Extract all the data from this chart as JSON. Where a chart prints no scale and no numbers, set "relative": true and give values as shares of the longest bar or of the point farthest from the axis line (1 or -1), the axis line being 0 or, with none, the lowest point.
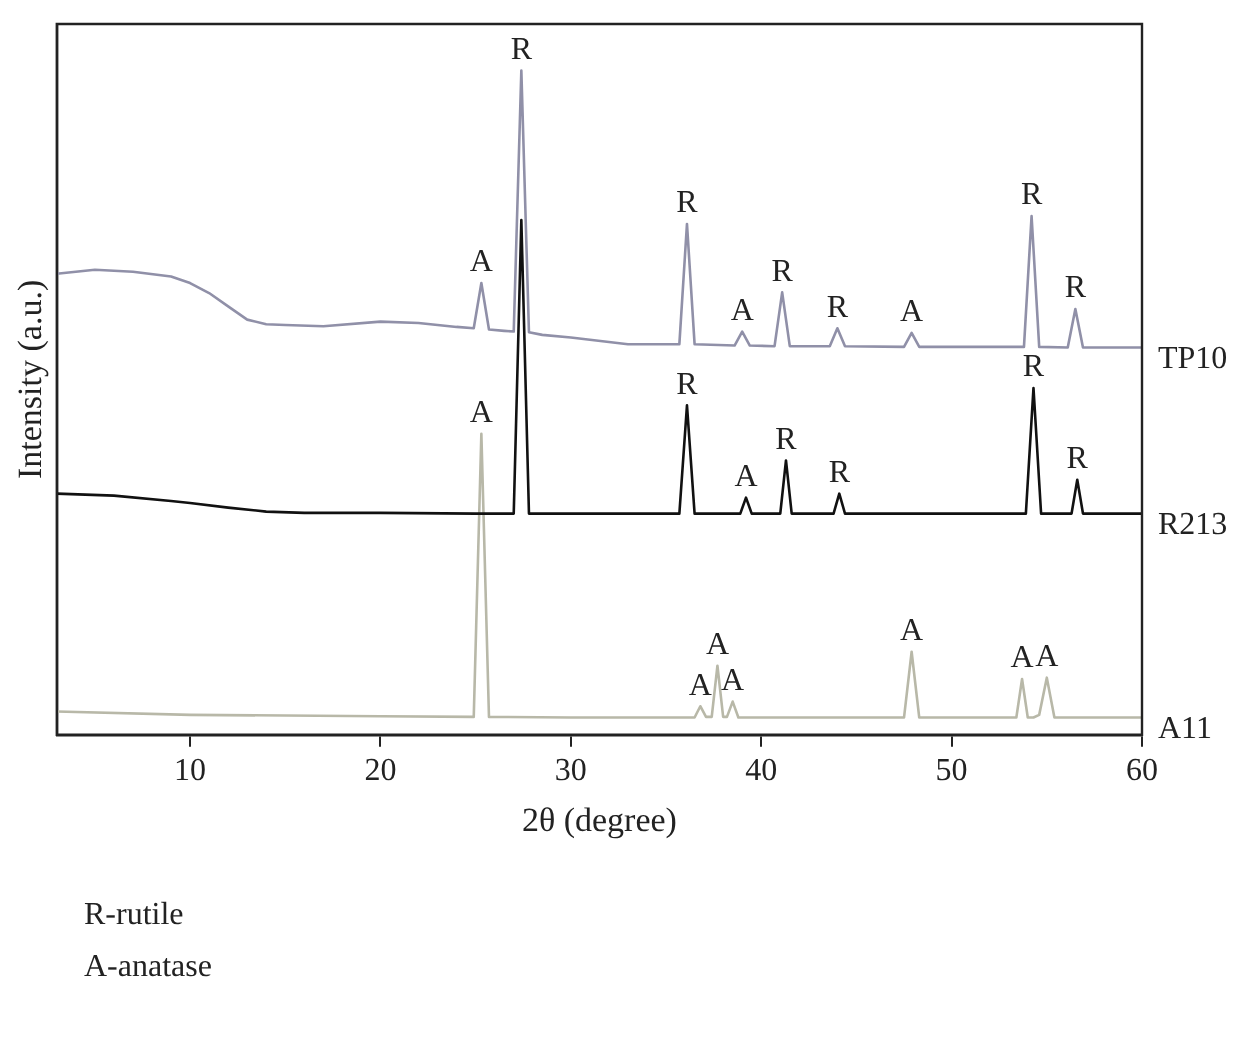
{
  "chart_data": {
    "type": "line",
    "relative": true,
    "xlabel": "2θ (degree)",
    "ylabel": "Intensity (a.u.)",
    "xlim": [
      3,
      60
    ],
    "xticks": [
      10,
      20,
      30,
      40,
      50,
      60
    ],
    "grid": false,
    "legend": false,
    "marker": "none",
    "line_style": "solid",
    "series": [
      {
        "name": "TP10",
        "color": "#9090a8",
        "x": [
          3,
          5,
          7,
          9,
          10,
          11,
          12,
          13,
          14,
          15,
          17,
          20,
          22,
          24,
          24.9,
          25.3,
          25.7,
          26.5,
          27.0,
          27.4,
          27.8,
          28.5,
          30,
          33,
          35.7,
          36.1,
          36.5,
          38.6,
          39.0,
          39.4,
          40.7,
          41.1,
          41.5,
          43.6,
          44.0,
          44.4,
          47.5,
          47.9,
          48.3,
          50,
          53.8,
          54.2,
          54.6,
          56.1,
          56.5,
          56.9,
          58,
          60
        ],
        "values": [
          0.694,
          0.7,
          0.697,
          0.69,
          0.68,
          0.665,
          0.645,
          0.625,
          0.618,
          0.617,
          0.615,
          0.622,
          0.62,
          0.614,
          0.612,
          0.68,
          0.61,
          0.608,
          0.607,
          1.0,
          0.606,
          0.602,
          0.598,
          0.588,
          0.588,
          0.769,
          0.588,
          0.586,
          0.607,
          0.586,
          0.585,
          0.666,
          0.585,
          0.585,
          0.612,
          0.585,
          0.584,
          0.605,
          0.584,
          0.584,
          0.584,
          0.781,
          0.584,
          0.583,
          0.641,
          0.583,
          0.583,
          0.583
        ]
      },
      {
        "name": "R213",
        "color": "#111111",
        "x": [
          3,
          6,
          9,
          10,
          12,
          14,
          16,
          20,
          25,
          27.0,
          27.4,
          27.8,
          30,
          35.7,
          36.1,
          36.5,
          38.9,
          39.2,
          39.5,
          41.0,
          41.3,
          41.6,
          43.8,
          44.1,
          44.4,
          50,
          53.9,
          54.3,
          54.7,
          56.3,
          56.6,
          56.9,
          60
        ],
        "values": [
          0.363,
          0.36,
          0.352,
          0.349,
          0.342,
          0.336,
          0.334,
          0.334,
          0.333,
          0.333,
          0.775,
          0.333,
          0.333,
          0.333,
          0.496,
          0.333,
          0.333,
          0.357,
          0.333,
          0.333,
          0.413,
          0.333,
          0.333,
          0.363,
          0.333,
          0.333,
          0.333,
          0.522,
          0.333,
          0.333,
          0.384,
          0.333,
          0.333
        ]
      },
      {
        "name": "A11",
        "color": "#b8b8a8",
        "x": [
          3,
          10,
          20,
          24.9,
          25.3,
          25.7,
          30,
          36.5,
          36.8,
          37.1,
          37.4,
          37.7,
          38.0,
          38.2,
          38.5,
          38.8,
          45,
          47.5,
          47.9,
          48.3,
          53.4,
          53.7,
          54.0,
          54.3,
          54.6,
          55.0,
          55.4,
          60
        ],
        "values": [
          0.035,
          0.03,
          0.028,
          0.027,
          0.453,
          0.027,
          0.026,
          0.026,
          0.043,
          0.027,
          0.027,
          0.104,
          0.027,
          0.027,
          0.05,
          0.026,
          0.026,
          0.026,
          0.125,
          0.026,
          0.026,
          0.084,
          0.026,
          0.026,
          0.03,
          0.086,
          0.026,
          0.026
        ]
      }
    ],
    "annotations": [
      {
        "text": "A",
        "x": 25.3,
        "y": 0.68
      },
      {
        "text": "R",
        "x": 27.4,
        "y": 1.0
      },
      {
        "text": "R",
        "x": 36.1,
        "y": 0.769
      },
      {
        "text": "A",
        "x": 39.0,
        "y": 0.607
      },
      {
        "text": "R",
        "x": 41.1,
        "y": 0.666
      },
      {
        "text": "R",
        "x": 44.0,
        "y": 0.612
      },
      {
        "text": "A",
        "x": 47.9,
        "y": 0.605
      },
      {
        "text": "R",
        "x": 54.2,
        "y": 0.781
      },
      {
        "text": "R",
        "x": 56.5,
        "y": 0.641
      },
      {
        "text": "R",
        "x": 36.1,
        "y": 0.496
      },
      {
        "text": "A",
        "x": 39.2,
        "y": 0.357
      },
      {
        "text": "R",
        "x": 41.3,
        "y": 0.413
      },
      {
        "text": "R",
        "x": 44.1,
        "y": 0.363
      },
      {
        "text": "R",
        "x": 54.3,
        "y": 0.522
      },
      {
        "text": "R",
        "x": 56.6,
        "y": 0.384
      },
      {
        "text": "A",
        "x": 25.3,
        "y": 0.453
      },
      {
        "text": "A",
        "x": 36.8,
        "y": 0.043
      },
      {
        "text": "A",
        "x": 37.7,
        "y": 0.104
      },
      {
        "text": "A",
        "x": 38.5,
        "y": 0.05
      },
      {
        "text": "A",
        "x": 47.9,
        "y": 0.125
      },
      {
        "text": "A",
        "x": 53.7,
        "y": 0.084
      },
      {
        "text": "A",
        "x": 55.0,
        "y": 0.086
      },
      "R-rutile",
      "A-anatase"
    ]
  }
}
